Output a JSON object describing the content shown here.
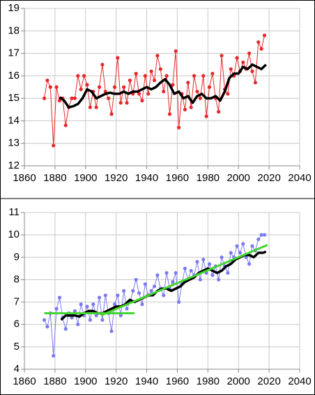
{
  "chart_data": [
    {
      "type": "line",
      "xlim": [
        1860,
        2040
      ],
      "xticks": [
        1860,
        1880,
        1900,
        1920,
        1940,
        1960,
        1980,
        2000,
        2020,
        2040
      ],
      "ylim": [
        12,
        19
      ],
      "yticks": [
        12,
        13,
        14,
        15,
        16,
        17,
        18,
        19
      ],
      "grid": true,
      "series": [
        {
          "color": "#e8282a",
          "markers": true,
          "width": 1,
          "x": [
            1873,
            1875,
            1877,
            1879,
            1881,
            1883,
            1885,
            1887,
            1889,
            1891,
            1893,
            1895,
            1897,
            1899,
            1901,
            1903,
            1905,
            1907,
            1909,
            1911,
            1913,
            1915,
            1917,
            1919,
            1921,
            1923,
            1925,
            1927,
            1929,
            1931,
            1933,
            1935,
            1937,
            1939,
            1941,
            1943,
            1945,
            1947,
            1949,
            1951,
            1953,
            1955,
            1957,
            1959,
            1961,
            1963,
            1965,
            1967,
            1969,
            1971,
            1973,
            1975,
            1977,
            1979,
            1981,
            1983,
            1985,
            1987,
            1989,
            1991,
            1993,
            1995,
            1997,
            1999,
            2001,
            2003,
            2005,
            2007,
            2009,
            2011,
            2013,
            2015,
            2017
          ],
          "values": [
            15.0,
            15.8,
            15.5,
            12.9,
            15.5,
            14.9,
            15.0,
            13.8,
            14.6,
            15.0,
            15.0,
            16.0,
            15.4,
            16.0,
            15.6,
            14.6,
            15.3,
            14.6,
            15.5,
            16.5,
            15.3,
            15.0,
            14.3,
            15.5,
            16.8,
            14.8,
            15.5,
            14.8,
            15.8,
            15.2,
            16.1,
            15.2,
            14.9,
            16.0,
            15.2,
            16.2,
            15.8,
            16.9,
            16.3,
            15.3,
            16.0,
            14.3,
            15.6,
            17.1,
            13.7,
            15.2,
            14.5,
            15.7,
            14.6,
            16.0,
            15.3,
            15.0,
            16.0,
            14.2,
            15.5,
            16.1,
            15.0,
            14.4,
            16.9,
            15.4,
            15.2,
            16.3,
            16.0,
            16.8,
            16.2,
            16.6,
            16.3,
            17.0,
            16.2,
            15.7,
            17.5,
            17.2,
            17.8
          ]
        },
        {
          "color": "#000000",
          "markers": false,
          "width": 3.5,
          "x": [
            1883,
            1886,
            1889,
            1892,
            1895,
            1898,
            1901,
            1904,
            1907,
            1910,
            1913,
            1916,
            1919,
            1922,
            1925,
            1928,
            1931,
            1934,
            1937,
            1940,
            1943,
            1946,
            1949,
            1952,
            1955,
            1958,
            1961,
            1964,
            1967,
            1970,
            1973,
            1976,
            1979,
            1982,
            1985,
            1988,
            1991,
            1994,
            1997,
            2000,
            2003,
            2006,
            2009,
            2012,
            2015,
            2018
          ],
          "values": [
            15.05,
            14.9,
            14.6,
            14.65,
            14.75,
            15.0,
            15.4,
            15.3,
            15.0,
            15.1,
            15.2,
            15.25,
            15.2,
            15.2,
            15.3,
            15.2,
            15.3,
            15.3,
            15.4,
            15.5,
            15.4,
            15.5,
            15.7,
            15.85,
            15.6,
            15.2,
            15.3,
            15.0,
            15.1,
            14.8,
            15.1,
            15.2,
            15.0,
            15.0,
            15.1,
            14.9,
            15.3,
            15.9,
            16.1,
            16.1,
            16.4,
            16.3,
            16.5,
            16.4,
            16.3,
            16.5
          ]
        }
      ]
    },
    {
      "type": "line",
      "xlim": [
        1860,
        2040
      ],
      "xticks": [
        1860,
        1880,
        1900,
        1920,
        1940,
        1960,
        1980,
        2000,
        2020,
        2040
      ],
      "ylim": [
        4,
        11
      ],
      "yticks": [
        4,
        5,
        6,
        7,
        8,
        9,
        10,
        11
      ],
      "grid": true,
      "series": [
        {
          "color": "#7b7bf0",
          "markers": true,
          "width": 1,
          "x": [
            1873,
            1875,
            1877,
            1879,
            1881,
            1883,
            1885,
            1887,
            1889,
            1891,
            1893,
            1895,
            1897,
            1899,
            1901,
            1903,
            1905,
            1907,
            1909,
            1911,
            1913,
            1915,
            1917,
            1919,
            1921,
            1923,
            1925,
            1927,
            1929,
            1931,
            1933,
            1935,
            1937,
            1939,
            1941,
            1943,
            1945,
            1947,
            1949,
            1951,
            1953,
            1955,
            1957,
            1959,
            1961,
            1963,
            1965,
            1967,
            1969,
            1971,
            1973,
            1975,
            1977,
            1979,
            1981,
            1983,
            1985,
            1987,
            1989,
            1991,
            1993,
            1995,
            1997,
            1999,
            2001,
            2003,
            2005,
            2007,
            2009,
            2011,
            2013,
            2015,
            2017
          ],
          "values": [
            6.2,
            5.9,
            6.5,
            4.6,
            6.7,
            7.2,
            6.3,
            5.8,
            6.5,
            6.3,
            6.6,
            6.0,
            6.9,
            6.4,
            6.8,
            6.2,
            6.9,
            6.4,
            7.2,
            6.2,
            7.3,
            6.5,
            5.7,
            6.9,
            7.3,
            6.4,
            7.5,
            6.7,
            7.0,
            7.5,
            8.0,
            7.4,
            6.9,
            7.8,
            7.3,
            7.5,
            7.7,
            8.2,
            7.6,
            7.3,
            8.3,
            7.6,
            7.9,
            8.3,
            7.0,
            7.8,
            8.5,
            8.0,
            8.4,
            8.2,
            8.8,
            8.0,
            8.9,
            8.3,
            8.7,
            8.2,
            8.6,
            8.0,
            9.0,
            8.6,
            8.3,
            9.2,
            9.0,
            9.5,
            9.2,
            9.6,
            9.0,
            8.7,
            9.5,
            9.3,
            9.8,
            10.0,
            10.0
          ]
        },
        {
          "color": "#000000",
          "markers": false,
          "width": 3.5,
          "x": [
            1884,
            1887,
            1890,
            1893,
            1896,
            1899,
            1902,
            1905,
            1908,
            1911,
            1914,
            1917,
            1920,
            1923,
            1926,
            1929,
            1932,
            1935,
            1938,
            1941,
            1944,
            1947,
            1950,
            1953,
            1956,
            1959,
            1962,
            1965,
            1968,
            1971,
            1974,
            1977,
            1980,
            1983,
            1986,
            1989,
            1992,
            1995,
            1998,
            2001,
            2004,
            2007,
            2010,
            2013,
            2016,
            2018
          ],
          "values": [
            6.2,
            6.4,
            6.4,
            6.4,
            6.35,
            6.5,
            6.6,
            6.6,
            6.5,
            6.5,
            6.6,
            6.7,
            6.8,
            6.8,
            6.9,
            7.1,
            7.0,
            7.1,
            7.2,
            7.3,
            7.3,
            7.5,
            7.6,
            7.6,
            7.5,
            7.6,
            7.7,
            7.9,
            8.0,
            8.1,
            8.3,
            8.4,
            8.5,
            8.4,
            8.3,
            8.4,
            8.6,
            8.7,
            8.9,
            9.0,
            9.1,
            9.1,
            9.0,
            9.2,
            9.2,
            9.25
          ]
        },
        {
          "color": "#44d430",
          "markers": false,
          "width": 3,
          "x": [
            1873,
            1932
          ],
          "values": [
            6.5,
            6.5
          ]
        },
        {
          "color": "#44d430",
          "markers": false,
          "width": 3,
          "x": [
            1910,
            2019
          ],
          "values": [
            6.4,
            9.55
          ]
        }
      ]
    }
  ]
}
